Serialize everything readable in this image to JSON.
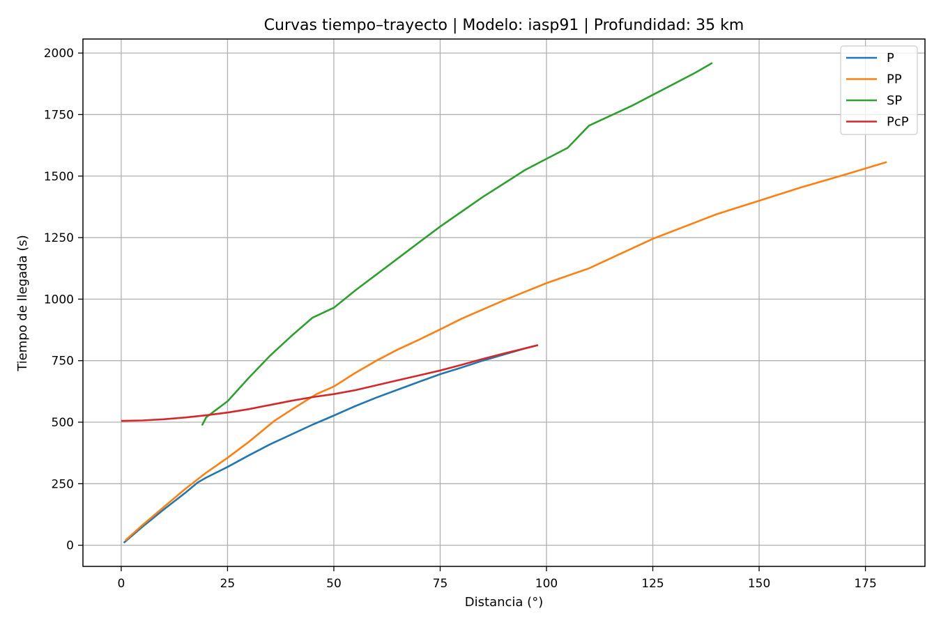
{
  "chart_data": {
    "type": "line",
    "title": "Curvas tiempo–trayecto | Modelo: iasp91 | Profundidad: 35 km",
    "xlabel": "Distancia (°)",
    "ylabel": "Tiempo de llegada (s)",
    "xlim": [
      -9,
      189
    ],
    "ylim": [
      -86,
      2057
    ],
    "xticks": [
      0,
      25,
      50,
      75,
      100,
      125,
      150,
      175
    ],
    "yticks": [
      0,
      250,
      500,
      750,
      1000,
      1250,
      1500,
      1750,
      2000
    ],
    "grid": true,
    "legend_position": "upper right",
    "series": [
      {
        "name": "P",
        "color": "#1f77b4",
        "x": [
          0.6,
          5,
          10,
          15,
          18,
          20,
          25,
          30,
          35,
          40,
          45,
          50,
          55,
          60,
          65,
          70,
          75,
          80,
          85,
          90,
          95,
          98
        ],
        "y": [
          10,
          75,
          145,
          212,
          255,
          275,
          318,
          365,
          410,
          450,
          490,
          527,
          565,
          600,
          632,
          664,
          695,
          722,
          750,
          775,
          800,
          813
        ]
      },
      {
        "name": "PP",
        "color": "#ff7f0e",
        "x": [
          1,
          5,
          10,
          15,
          20,
          25,
          30,
          36,
          40,
          46,
          50,
          55,
          60,
          65,
          70,
          75,
          80,
          90,
          100,
          110,
          125,
          140,
          150,
          160,
          170,
          180
        ],
        "y": [
          20,
          82,
          155,
          228,
          295,
          355,
          420,
          505,
          550,
          615,
          645,
          700,
          750,
          795,
          835,
          877,
          920,
          995,
          1065,
          1125,
          1245,
          1345,
          1400,
          1455,
          1505,
          1557
        ]
      },
      {
        "name": "SP",
        "color": "#2ca02c",
        "x": [
          19,
          20,
          25,
          30,
          35,
          40,
          45,
          50,
          55,
          60,
          65,
          70,
          75,
          80,
          85,
          90,
          95,
          100,
          105,
          110,
          115,
          120,
          125,
          130,
          135,
          139
        ],
        "y": [
          487,
          520,
          585,
          680,
          770,
          850,
          925,
          965,
          1035,
          1100,
          1165,
          1230,
          1295,
          1355,
          1415,
          1470,
          1525,
          1570,
          1615,
          1705,
          1745,
          1785,
          1830,
          1875,
          1920,
          1960
        ]
      },
      {
        "name": "PcP",
        "color": "#d62728",
        "x": [
          0,
          5,
          10,
          15,
          20,
          25,
          30,
          35,
          40,
          45,
          50,
          55,
          60,
          65,
          70,
          75,
          80,
          85,
          90,
          95,
          98
        ],
        "y": [
          505,
          507,
          512,
          519,
          528,
          539,
          553,
          570,
          587,
          602,
          614,
          630,
          650,
          670,
          690,
          710,
          733,
          757,
          779,
          800,
          813
        ]
      }
    ]
  }
}
